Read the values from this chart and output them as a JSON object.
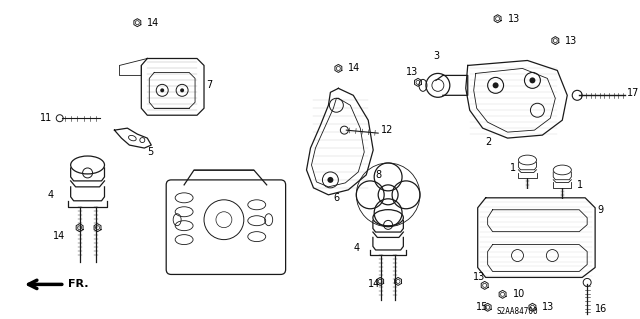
{
  "background_color": "#ffffff",
  "fig_width": 6.4,
  "fig_height": 3.19,
  "dpi": 100,
  "code": "S2AA84700"
}
